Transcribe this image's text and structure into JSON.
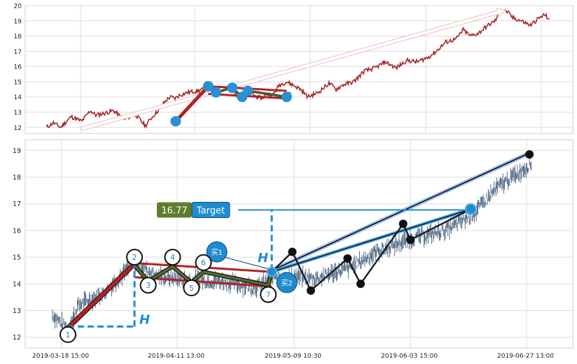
{
  "chart_data": [
    {
      "type": "line",
      "panel": "overview",
      "ylim": [
        11.6,
        20.0
      ],
      "y_ticks": [
        12,
        13,
        14,
        15,
        16,
        17,
        18,
        19,
        20
      ],
      "grid": true,
      "colors": {
        "price": "#a52a2a",
        "pole": "#b22222",
        "flag": "#556b2f",
        "point": "#2b8fd6",
        "arrow": "#f0c8c8"
      },
      "price_keypoints": [
        [
          0,
          12.0
        ],
        [
          10,
          12.3
        ],
        [
          20,
          12.0
        ],
        [
          35,
          12.7
        ],
        [
          50,
          12.4
        ],
        [
          62,
          13.1
        ],
        [
          70,
          12.8
        ],
        [
          80,
          12.9
        ],
        [
          95,
          13.1
        ],
        [
          110,
          12.5
        ],
        [
          125,
          12.9
        ],
        [
          140,
          12.1
        ],
        [
          150,
          12.7
        ],
        [
          160,
          13.2
        ],
        [
          168,
          13.7
        ],
        [
          175,
          14.0
        ],
        [
          182,
          13.9
        ],
        [
          188,
          14.1
        ],
        [
          200,
          14.3
        ],
        [
          215,
          14.4
        ],
        [
          228,
          14.6
        ],
        [
          240,
          14.2
        ],
        [
          255,
          14.7
        ],
        [
          270,
          14.1
        ],
        [
          285,
          14.4
        ],
        [
          298,
          14.0
        ],
        [
          305,
          13.9
        ],
        [
          312,
          14.2
        ],
        [
          320,
          14.1
        ],
        [
          330,
          14.8
        ],
        [
          340,
          15.0
        ],
        [
          352,
          14.7
        ],
        [
          360,
          14.5
        ],
        [
          370,
          14.0
        ],
        [
          385,
          14.3
        ],
        [
          400,
          14.9
        ],
        [
          410,
          14.5
        ],
        [
          420,
          14.8
        ],
        [
          435,
          15.0
        ],
        [
          450,
          15.7
        ],
        [
          465,
          15.9
        ],
        [
          480,
          16.3
        ],
        [
          495,
          15.9
        ],
        [
          510,
          16.4
        ],
        [
          525,
          16.3
        ],
        [
          540,
          16.6
        ],
        [
          552,
          17.0
        ],
        [
          565,
          17.6
        ],
        [
          580,
          17.8
        ],
        [
          590,
          18.4
        ],
        [
          600,
          18.0
        ],
        [
          612,
          18.2
        ],
        [
          622,
          18.6
        ],
        [
          635,
          19.0
        ],
        [
          645,
          19.7
        ],
        [
          652,
          19.6
        ],
        [
          660,
          19.2
        ],
        [
          672,
          19.0
        ],
        [
          685,
          18.7
        ],
        [
          695,
          19.1
        ],
        [
          705,
          19.4
        ],
        [
          712,
          19.1
        ]
      ],
      "pole_segment": [
        [
          183,
          12.4
        ],
        [
          229,
          14.7
        ]
      ],
      "flag_segments": [
        [
          [
            229,
            14.7
          ],
          [
            340,
            14.4
          ]
        ],
        [
          [
            229,
            14.2
          ],
          [
            340,
            13.9
          ]
        ]
      ],
      "flag_path": [
        [
          229,
          14.7
        ],
        [
          240,
          14.3
        ],
        [
          263,
          14.6
        ],
        [
          277,
          14.0
        ],
        [
          285,
          14.4
        ],
        [
          340,
          14.0
        ],
        [
          345,
          14.3
        ]
      ],
      "markers": [
        [
          183,
          12.4
        ],
        [
          229,
          14.7
        ],
        [
          240,
          14.3
        ],
        [
          263,
          14.6
        ],
        [
          277,
          14.0
        ],
        [
          285,
          14.4
        ],
        [
          340,
          14.0
        ]
      ],
      "target_arrow": [
        [
          50,
          11.9
        ],
        [
          650,
          19.7
        ]
      ]
    },
    {
      "type": "scatter",
      "panel": "detail",
      "ylim": [
        11.6,
        19.4
      ],
      "y_ticks": [
        12,
        13,
        14,
        15,
        16,
        17,
        18,
        19
      ],
      "x_tick_labels": [
        "2019-03-18 15:00",
        "2019-04-11 13:00",
        "2019-05-09 10:30",
        "2019-06-03 15:00",
        "2019-06-27 13:00"
      ],
      "grid": true,
      "pattern_points": [
        {
          "label": "1",
          "x": 0.0,
          "y": 12.1
        },
        {
          "label": "2",
          "x": 0.194,
          "y": 15.0
        },
        {
          "label": "3",
          "x": 0.234,
          "y": 13.95
        },
        {
          "label": "4",
          "x": 0.305,
          "y": 15.0
        },
        {
          "label": "5",
          "x": 0.36,
          "y": 13.85
        },
        {
          "label": "6",
          "x": 0.395,
          "y": 14.8
        },
        {
          "label": "7",
          "x": 0.584,
          "y": 13.6
        }
      ],
      "pole": [
        [
          0.0,
          12.35
        ],
        [
          0.194,
          14.75
        ]
      ],
      "flag_top": [
        [
          0.194,
          14.78
        ],
        [
          0.594,
          14.45
        ]
      ],
      "flag_bottom": [
        [
          0.194,
          14.25
        ],
        [
          0.594,
          13.9
        ]
      ],
      "flag_zigzag": [
        [
          0.194,
          14.7
        ],
        [
          0.234,
          14.1
        ],
        [
          0.305,
          14.65
        ],
        [
          0.36,
          14.05
        ],
        [
          0.395,
          14.45
        ],
        [
          0.584,
          13.95
        ],
        [
          0.594,
          14.5
        ]
      ],
      "dashed_left": {
        "x0": 0.0,
        "x1": 0.194,
        "y_low": 12.4,
        "y_high": 14.75,
        "label": "H"
      },
      "dashed_right": {
        "x": 0.594,
        "y_low": 14.5,
        "y_high": 16.77,
        "label": "H"
      },
      "post_zigzag": [
        [
          0.594,
          14.45
        ],
        [
          0.654,
          15.2
        ],
        [
          0.708,
          13.75
        ],
        [
          0.815,
          14.95
        ],
        [
          0.853,
          14.0
        ],
        [
          0.977,
          16.25
        ],
        [
          0.998,
          15.65
        ],
        [
          1.174,
          16.8
        ]
      ],
      "breakout_path": [
        [
          0.594,
          14.45
        ],
        [
          1.174,
          16.8
        ]
      ],
      "trend_line": [
        [
          0.594,
          14.5
        ],
        [
          1.345,
          18.9
        ]
      ],
      "target_point": [
        1.174,
        16.8
      ],
      "trend_end_point": [
        1.345,
        18.85
      ],
      "target_price": "16.77",
      "target_label": "Target",
      "buy_labels": [
        "买1",
        "买2"
      ],
      "candle_seed": 7,
      "colors": {
        "pole": "#b22222",
        "flag": "#556b2f",
        "blue": "#1f8bd0",
        "dark": "#0d1a33",
        "candle": "#2c4a6b",
        "target_price_bg": "#5d7e2a"
      }
    }
  ]
}
